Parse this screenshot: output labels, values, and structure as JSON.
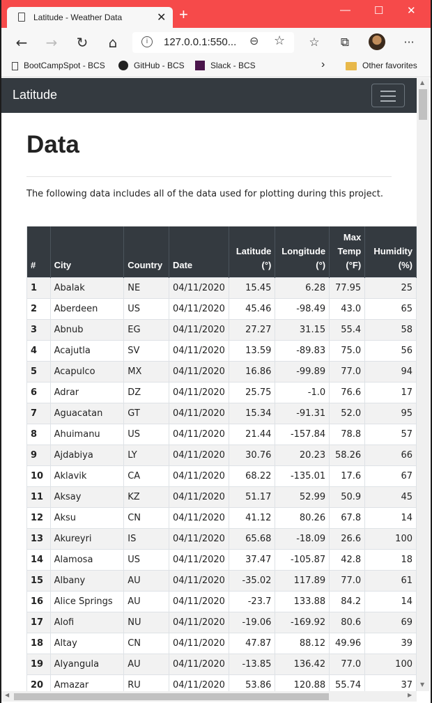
{
  "browser": {
    "tab_title": "Latitude - Weather Data",
    "tab_close": "✕",
    "new_tab": "+",
    "minimize": "—",
    "maximize": "☐",
    "close": "✕",
    "url": "127.0.0.1:550...",
    "favorites": [
      {
        "label": "BootCampSpot - BCS",
        "icon": "page-icon"
      },
      {
        "label": "GitHub - BCS",
        "icon": "github-icon"
      },
      {
        "label": "Slack - BCS",
        "icon": "slack-icon"
      }
    ],
    "favorites_more": "›",
    "other_favorites": "Other favorites",
    "menu": "···"
  },
  "navbar": {
    "brand": "Latitude"
  },
  "main": {
    "title": "Data",
    "description": "The following data includes all of the data used for plotting during this project."
  },
  "table": {
    "headers": [
      "#",
      "City",
      "Country",
      "Date",
      "Latitude\n(°)",
      "Longitude\n(°)",
      "Max\nTemp\n(°F)",
      "Humidity\n(%)"
    ],
    "rows": [
      [
        "1",
        "Abalak",
        "NE",
        "04/11/2020",
        "15.45",
        "6.28",
        "77.95",
        "25"
      ],
      [
        "2",
        "Aberdeen",
        "US",
        "04/11/2020",
        "45.46",
        "-98.49",
        "43.0",
        "65"
      ],
      [
        "3",
        "Abnub",
        "EG",
        "04/11/2020",
        "27.27",
        "31.15",
        "55.4",
        "58"
      ],
      [
        "4",
        "Acajutla",
        "SV",
        "04/11/2020",
        "13.59",
        "-89.83",
        "75.0",
        "56"
      ],
      [
        "5",
        "Acapulco",
        "MX",
        "04/11/2020",
        "16.86",
        "-99.89",
        "77.0",
        "94"
      ],
      [
        "6",
        "Adrar",
        "DZ",
        "04/11/2020",
        "25.75",
        "-1.0",
        "76.6",
        "17"
      ],
      [
        "7",
        "Aguacatan",
        "GT",
        "04/11/2020",
        "15.34",
        "-91.31",
        "52.0",
        "95"
      ],
      [
        "8",
        "Ahuimanu",
        "US",
        "04/11/2020",
        "21.44",
        "-157.84",
        "78.8",
        "57"
      ],
      [
        "9",
        "Ajdabiya",
        "LY",
        "04/11/2020",
        "30.76",
        "20.23",
        "58.26",
        "66"
      ],
      [
        "10",
        "Aklavik",
        "CA",
        "04/11/2020",
        "68.22",
        "-135.01",
        "17.6",
        "67"
      ],
      [
        "11",
        "Aksay",
        "KZ",
        "04/11/2020",
        "51.17",
        "52.99",
        "50.9",
        "45"
      ],
      [
        "12",
        "Aksu",
        "CN",
        "04/11/2020",
        "41.12",
        "80.26",
        "67.8",
        "14"
      ],
      [
        "13",
        "Akureyri",
        "IS",
        "04/11/2020",
        "65.68",
        "-18.09",
        "26.6",
        "100"
      ],
      [
        "14",
        "Alamosa",
        "US",
        "04/11/2020",
        "37.47",
        "-105.87",
        "42.8",
        "18"
      ],
      [
        "15",
        "Albany",
        "AU",
        "04/11/2020",
        "-35.02",
        "117.89",
        "77.0",
        "61"
      ],
      [
        "16",
        "Alice Springs",
        "AU",
        "04/11/2020",
        "-23.7",
        "133.88",
        "84.2",
        "14"
      ],
      [
        "17",
        "Alofi",
        "NU",
        "04/11/2020",
        "-19.06",
        "-169.92",
        "80.6",
        "69"
      ],
      [
        "18",
        "Altay",
        "CN",
        "04/11/2020",
        "47.87",
        "88.12",
        "49.96",
        "39"
      ],
      [
        "19",
        "Alyangula",
        "AU",
        "04/11/2020",
        "-13.85",
        "136.42",
        "77.0",
        "100"
      ],
      [
        "20",
        "Amazar",
        "RU",
        "04/11/2020",
        "53.86",
        "120.88",
        "55.74",
        "37"
      ]
    ]
  }
}
